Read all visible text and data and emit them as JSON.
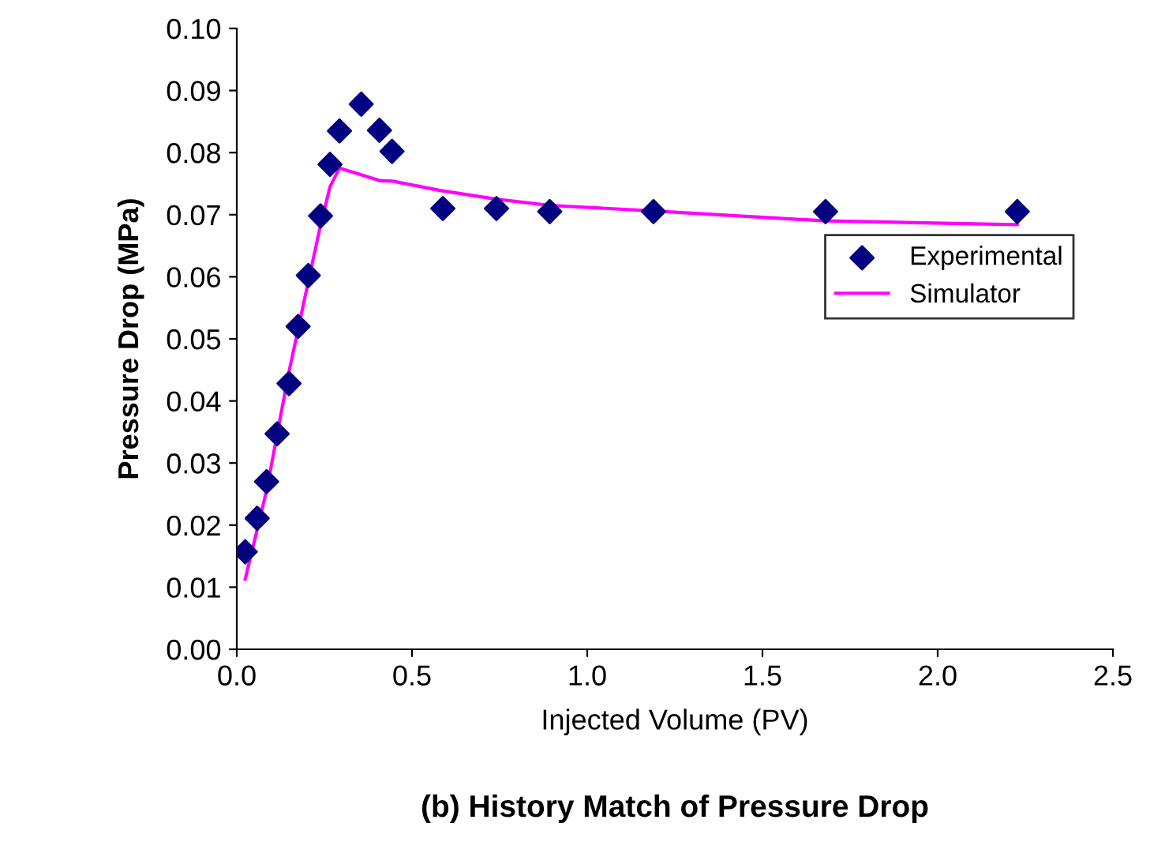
{
  "chart_data": {
    "type": "scatter",
    "title": "(b) History Match of Pressure Drop",
    "xlabel": "Injected Volume (PV)",
    "ylabel": "Pressure Drop (MPa)",
    "xlim": [
      0,
      2.5
    ],
    "xticks": [
      {
        "value": 0,
        "label": "0.0"
      },
      {
        "value": 0.5,
        "label": "0.5"
      },
      {
        "value": 1,
        "label": "1.0"
      },
      {
        "value": 1.5,
        "label": "1.5"
      },
      {
        "value": 2,
        "label": "2.0"
      },
      {
        "value": 2.5,
        "label": "2.5"
      }
    ],
    "ylim": [
      0,
      0.1
    ],
    "yticks": [
      {
        "value": 0,
        "label": "0.00"
      },
      {
        "value": 0.01,
        "label": "0.01"
      },
      {
        "value": 0.02,
        "label": "0.02"
      },
      {
        "value": 0.03,
        "label": "0.03"
      },
      {
        "value": 0.04,
        "label": "0.04"
      },
      {
        "value": 0.05,
        "label": "0.05"
      },
      {
        "value": 0.06,
        "label": "0.06"
      },
      {
        "value": 0.07,
        "label": "0.07"
      },
      {
        "value": 0.08,
        "label": "0.08"
      },
      {
        "value": 0.09,
        "label": "0.09"
      },
      {
        "value": 0.1,
        "label": "0.10"
      }
    ],
    "grid": false,
    "legend": "right",
    "series": [
      {
        "name": "Experimental",
        "marker": "diamond",
        "color": "#000080",
        "x": [
          0.024,
          0.058,
          0.085,
          0.115,
          0.149,
          0.175,
          0.204,
          0.239,
          0.266,
          0.293,
          0.355,
          0.407,
          0.443,
          0.588,
          0.741,
          0.893,
          1.189,
          1.68,
          2.227
        ],
        "values": [
          0.0157,
          0.0211,
          0.027,
          0.0347,
          0.0428,
          0.052,
          0.0602,
          0.0698,
          0.0781,
          0.0835,
          0.0878,
          0.0836,
          0.0802,
          0.071,
          0.071,
          0.0705,
          0.0705,
          0.0705,
          0.0705
        ]
      },
      {
        "name": "Simulator",
        "type": "line",
        "marker": "none",
        "line_style": "solid",
        "color": "#ff00ff",
        "x": [
          0.024,
          0.086,
          0.146,
          0.204,
          0.239,
          0.266,
          0.293,
          0.407,
          0.445,
          0.58,
          0.74,
          0.893,
          1.19,
          1.68,
          2.227
        ],
        "values": [
          0.0113,
          0.0258,
          0.0439,
          0.0592,
          0.0683,
          0.0745,
          0.0775,
          0.0755,
          0.0754,
          0.0739,
          0.0725,
          0.0715,
          0.0706,
          0.069,
          0.0684
        ]
      }
    ]
  }
}
